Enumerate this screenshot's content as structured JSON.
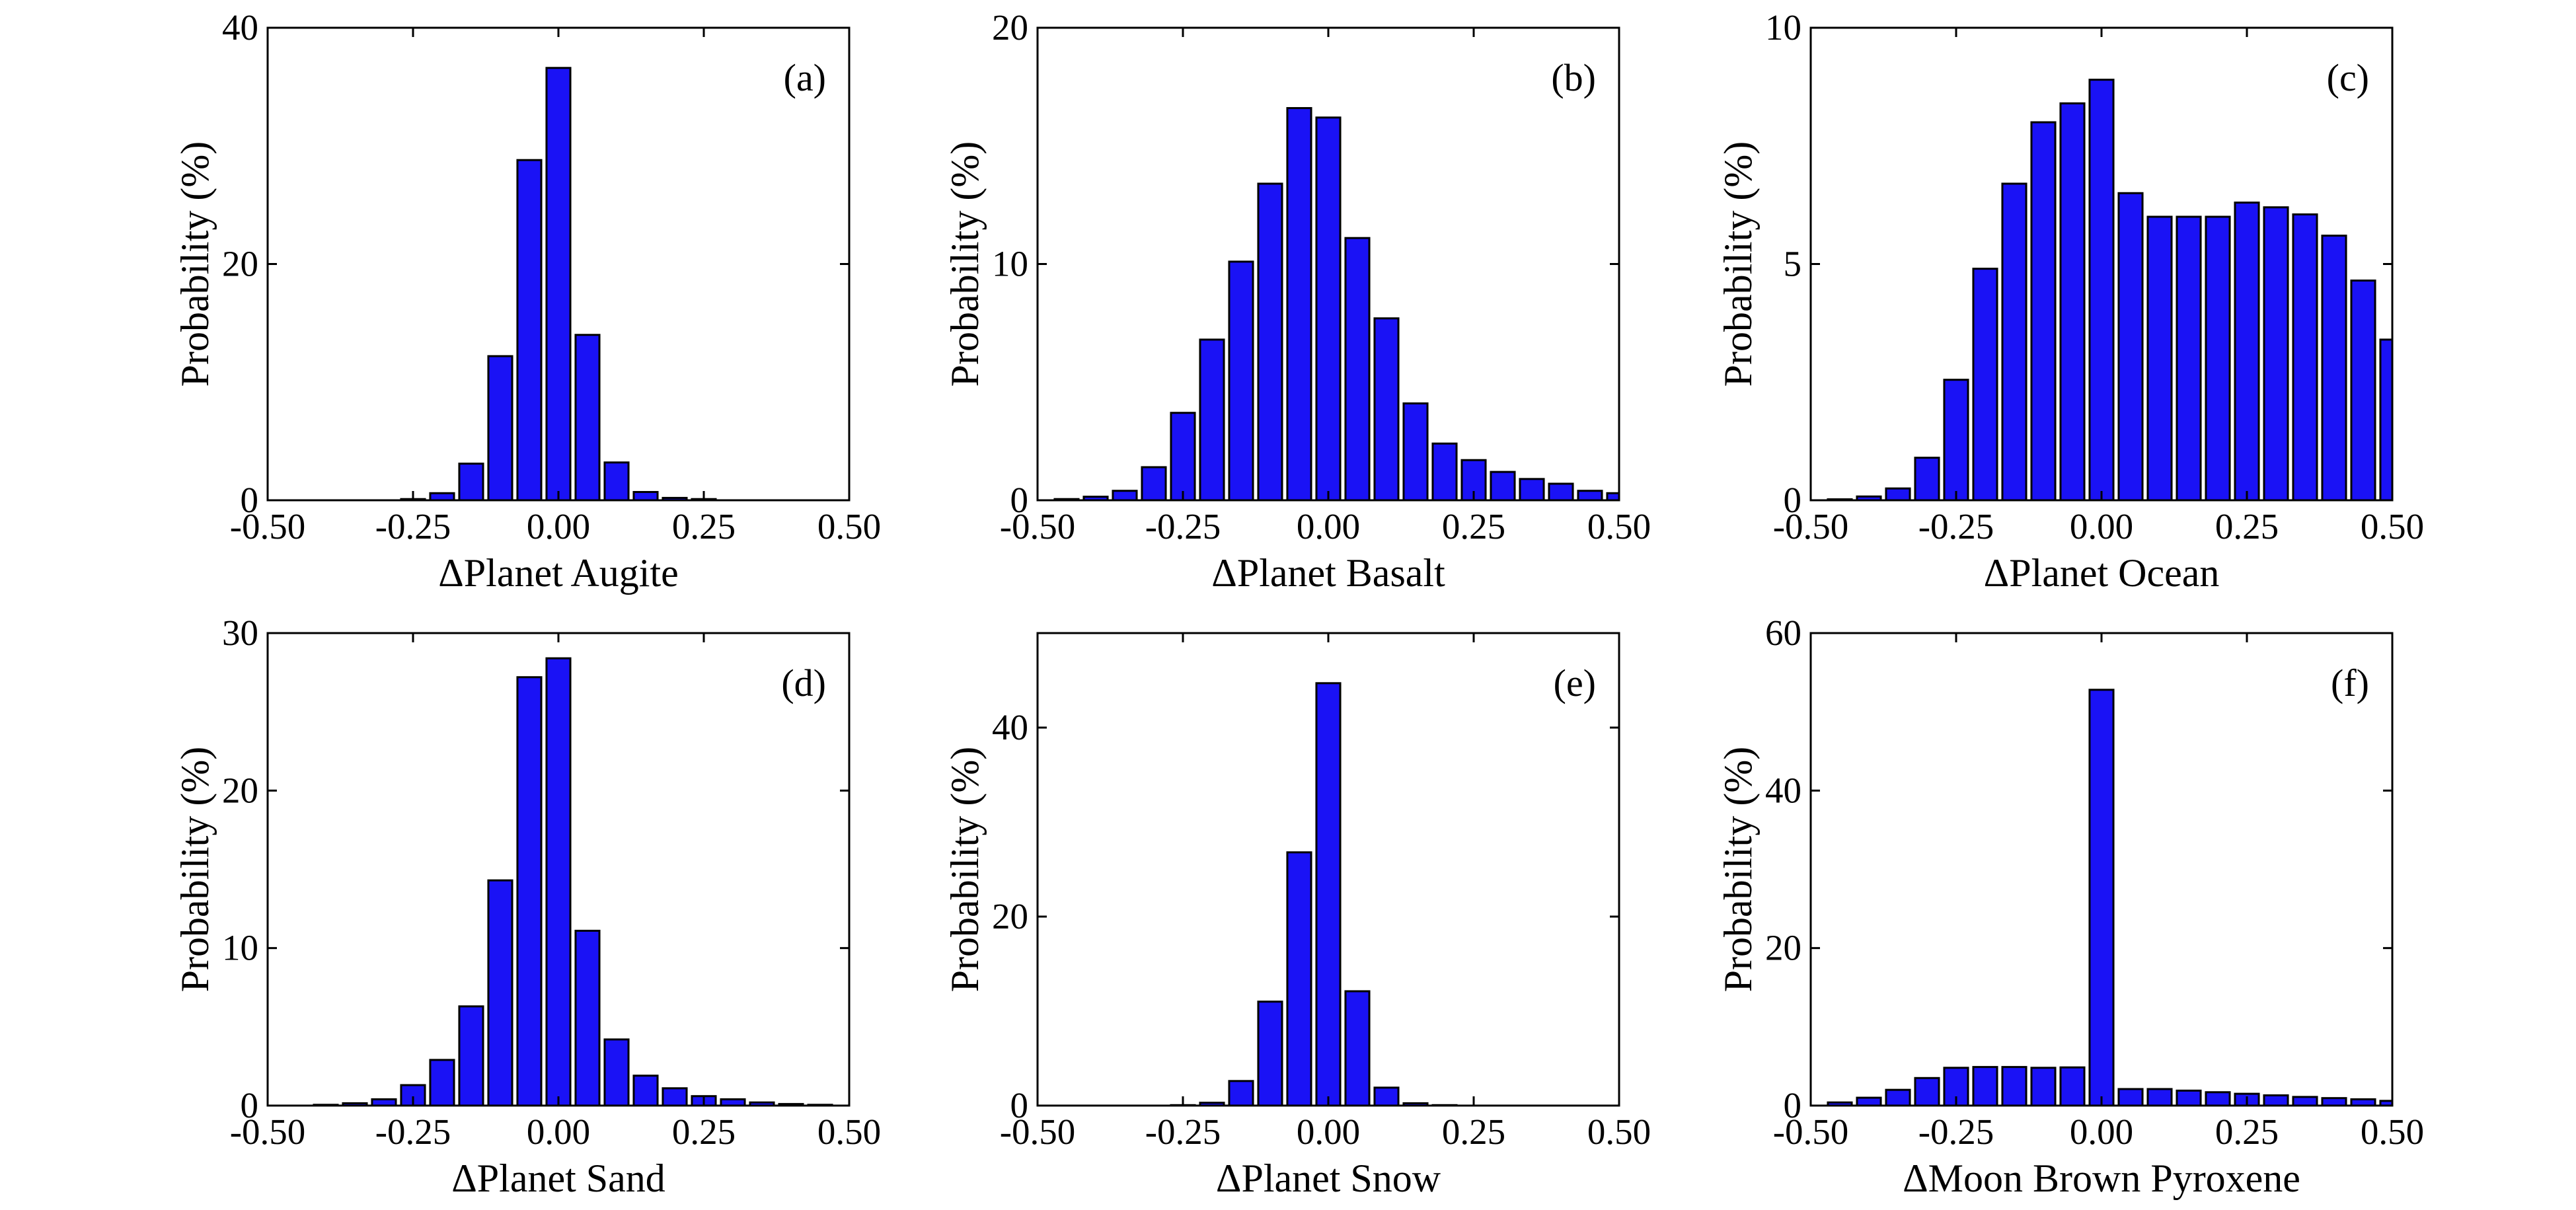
{
  "colors": {
    "bar_fill": "#1a12f5",
    "bar_edge": "#000000",
    "axes": "#000000"
  },
  "chart_data": [
    {
      "type": "bar",
      "panel_label": "(a)",
      "xlabel": "ΔPlanet Augite",
      "ylabel": "Probability (%)",
      "xlim": [
        -0.5,
        0.5
      ],
      "ylim": [
        0,
        40
      ],
      "xticks": [
        -0.5,
        -0.25,
        0,
        0.25,
        0.5
      ],
      "xtick_labels": [
        "-0.50",
        "-0.25",
        "0.00",
        "0.25",
        "0.50"
      ],
      "yticks": [
        0,
        20,
        40
      ],
      "ytick_labels": [
        "0",
        "20",
        "40"
      ],
      "bin_width": 0.05,
      "x": [
        -0.45,
        -0.4,
        -0.35,
        -0.3,
        -0.25,
        -0.2,
        -0.15,
        -0.1,
        -0.05,
        0,
        0.05,
        0.1,
        0.15,
        0.2,
        0.25,
        0.3,
        0.35,
        0.4,
        0.45
      ],
      "values": [
        0,
        0,
        0,
        0,
        0.1,
        0.6,
        3.1,
        12.2,
        28.8,
        36.6,
        14.0,
        3.2,
        0.7,
        0.2,
        0.1,
        0,
        0,
        0,
        0
      ]
    },
    {
      "type": "bar",
      "panel_label": "(b)",
      "xlabel": "ΔPlanet Basalt",
      "ylabel": "Probability (%)",
      "xlim": [
        -0.5,
        0.5
      ],
      "ylim": [
        0,
        20
      ],
      "xticks": [
        -0.5,
        -0.25,
        0,
        0.25,
        0.5
      ],
      "xtick_labels": [
        "-0.50",
        "-0.25",
        "0.00",
        "0.25",
        "0.50"
      ],
      "yticks": [
        0,
        10,
        20
      ],
      "ytick_labels": [
        "0",
        "10",
        "20"
      ],
      "bin_width": 0.05,
      "x": [
        -0.45,
        -0.4,
        -0.35,
        -0.3,
        -0.25,
        -0.2,
        -0.15,
        -0.1,
        -0.05,
        0,
        0.05,
        0.1,
        0.15,
        0.2,
        0.25,
        0.3,
        0.35,
        0.4,
        0.45,
        0.5
      ],
      "values": [
        0.05,
        0.15,
        0.4,
        1.4,
        3.7,
        6.8,
        10.1,
        13.4,
        16.6,
        16.2,
        11.1,
        7.7,
        4.1,
        2.4,
        1.7,
        1.2,
        0.9,
        0.7,
        0.4,
        0.3
      ]
    },
    {
      "type": "bar",
      "panel_label": "(c)",
      "xlabel": "ΔPlanet Ocean",
      "ylabel": "Probability (%)",
      "xlim": [
        -0.5,
        0.5
      ],
      "ylim": [
        0,
        10
      ],
      "xticks": [
        -0.5,
        -0.25,
        0,
        0.25,
        0.5
      ],
      "xtick_labels": [
        "-0.50",
        "-0.25",
        "0.00",
        "0.25",
        "0.50"
      ],
      "yticks": [
        0,
        5,
        10
      ],
      "ytick_labels": [
        "0",
        "5",
        "10"
      ],
      "bin_width": 0.05,
      "x": [
        -0.45,
        -0.4,
        -0.35,
        -0.3,
        -0.25,
        -0.2,
        -0.15,
        -0.1,
        -0.05,
        0,
        0.05,
        0.1,
        0.15,
        0.2,
        0.25,
        0.3,
        0.35,
        0.4,
        0.45,
        0.5
      ],
      "values": [
        0.02,
        0.08,
        0.25,
        0.9,
        2.55,
        4.9,
        6.7,
        8.0,
        8.4,
        8.9,
        6.5,
        6.0,
        6.0,
        6.0,
        6.3,
        6.2,
        6.05,
        5.6,
        4.65,
        3.4
      ]
    },
    {
      "type": "bar",
      "panel_label": "(d)",
      "xlabel": "ΔPlanet Sand",
      "ylabel": "Probability (%)",
      "xlim": [
        -0.5,
        0.5
      ],
      "ylim": [
        0,
        30
      ],
      "xticks": [
        -0.5,
        -0.25,
        0,
        0.25,
        0.5
      ],
      "xtick_labels": [
        "-0.50",
        "-0.25",
        "0.00",
        "0.25",
        "0.50"
      ],
      "yticks": [
        0,
        10,
        20,
        30
      ],
      "ytick_labels": [
        "0",
        "10",
        "20",
        "30"
      ],
      "bin_width": 0.05,
      "x": [
        -0.45,
        -0.4,
        -0.35,
        -0.3,
        -0.25,
        -0.2,
        -0.15,
        -0.1,
        -0.05,
        0,
        0.05,
        0.1,
        0.15,
        0.2,
        0.25,
        0.3,
        0.35,
        0.4,
        0.45
      ],
      "values": [
        0,
        0.05,
        0.15,
        0.4,
        1.3,
        2.9,
        6.3,
        14.3,
        27.2,
        28.4,
        11.1,
        4.2,
        1.9,
        1.1,
        0.6,
        0.4,
        0.2,
        0.1,
        0.05
      ]
    },
    {
      "type": "bar",
      "panel_label": "(e)",
      "xlabel": "ΔPlanet Snow",
      "ylabel": "Probability (%)",
      "xlim": [
        -0.5,
        0.5
      ],
      "ylim": [
        0,
        50
      ],
      "xticks": [
        -0.5,
        -0.25,
        0,
        0.25,
        0.5
      ],
      "xtick_labels": [
        "-0.50",
        "-0.25",
        "0.00",
        "0.25",
        "0.50"
      ],
      "yticks": [
        0,
        20,
        40
      ],
      "ytick_labels": [
        "0",
        "20",
        "40"
      ],
      "bin_width": 0.05,
      "x": [
        -0.45,
        -0.4,
        -0.35,
        -0.3,
        -0.25,
        -0.2,
        -0.15,
        -0.1,
        -0.05,
        0,
        0.05,
        0.1,
        0.15,
        0.2,
        0.25,
        0.3,
        0.35,
        0.4,
        0.45
      ],
      "values": [
        0,
        0,
        0,
        0,
        0.05,
        0.3,
        2.6,
        11.0,
        26.8,
        44.7,
        12.1,
        1.9,
        0.25,
        0.05,
        0,
        0,
        0,
        0,
        0
      ]
    },
    {
      "type": "bar",
      "panel_label": "(f)",
      "xlabel": "ΔMoon Brown Pyroxene",
      "ylabel": "Probability (%)",
      "xlim": [
        -0.5,
        0.5
      ],
      "ylim": [
        0,
        60
      ],
      "xticks": [
        -0.5,
        -0.25,
        0,
        0.25,
        0.5
      ],
      "xtick_labels": [
        "-0.50",
        "-0.25",
        "0.00",
        "0.25",
        "0.50"
      ],
      "yticks": [
        0,
        20,
        40,
        60
      ],
      "ytick_labels": [
        "0",
        "20",
        "40",
        "60"
      ],
      "bin_width": 0.05,
      "x": [
        -0.45,
        -0.4,
        -0.35,
        -0.3,
        -0.25,
        -0.2,
        -0.15,
        -0.1,
        -0.05,
        0,
        0.05,
        0.1,
        0.15,
        0.2,
        0.25,
        0.3,
        0.35,
        0.4,
        0.45,
        0.5
      ],
      "values": [
        0.4,
        1.0,
        2.0,
        3.5,
        4.8,
        4.9,
        4.9,
        4.8,
        4.85,
        52.8,
        2.1,
        2.1,
        1.9,
        1.7,
        1.5,
        1.3,
        1.1,
        0.95,
        0.8,
        0.6
      ]
    }
  ]
}
